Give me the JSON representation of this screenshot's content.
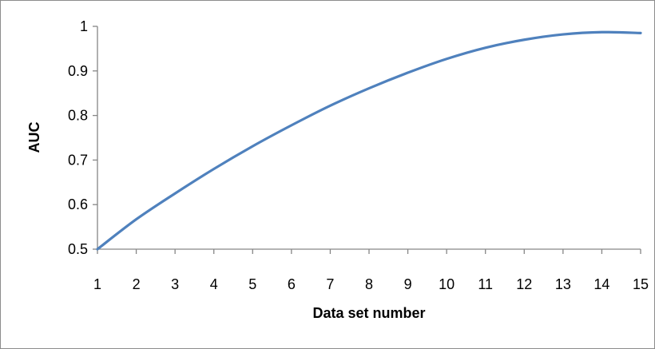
{
  "chart_data": {
    "type": "line",
    "title": "",
    "xlabel": "Data set number",
    "ylabel": "AUC",
    "x": [
      1,
      2,
      3,
      4,
      5,
      6,
      7,
      8,
      9,
      10,
      11,
      12,
      13,
      14,
      15
    ],
    "series": [
      {
        "values": [
          0.5,
          0.567,
          0.625,
          0.68,
          0.731,
          0.778,
          0.822,
          0.861,
          0.896,
          0.927,
          0.952,
          0.97,
          0.982,
          0.987,
          0.985
        ]
      }
    ],
    "xlim": [
      1,
      15
    ],
    "ylim": [
      0.5,
      1
    ],
    "xticks": [
      "1",
      "2",
      "3",
      "4",
      "5",
      "6",
      "7",
      "8",
      "9",
      "10",
      "11",
      "12",
      "13",
      "14",
      "15"
    ],
    "yticks": [
      "0.5",
      "0.6",
      "0.7",
      "0.8",
      "0.9",
      "1"
    ],
    "grid": false,
    "legend": "none",
    "line_color": "#4F81BD"
  }
}
